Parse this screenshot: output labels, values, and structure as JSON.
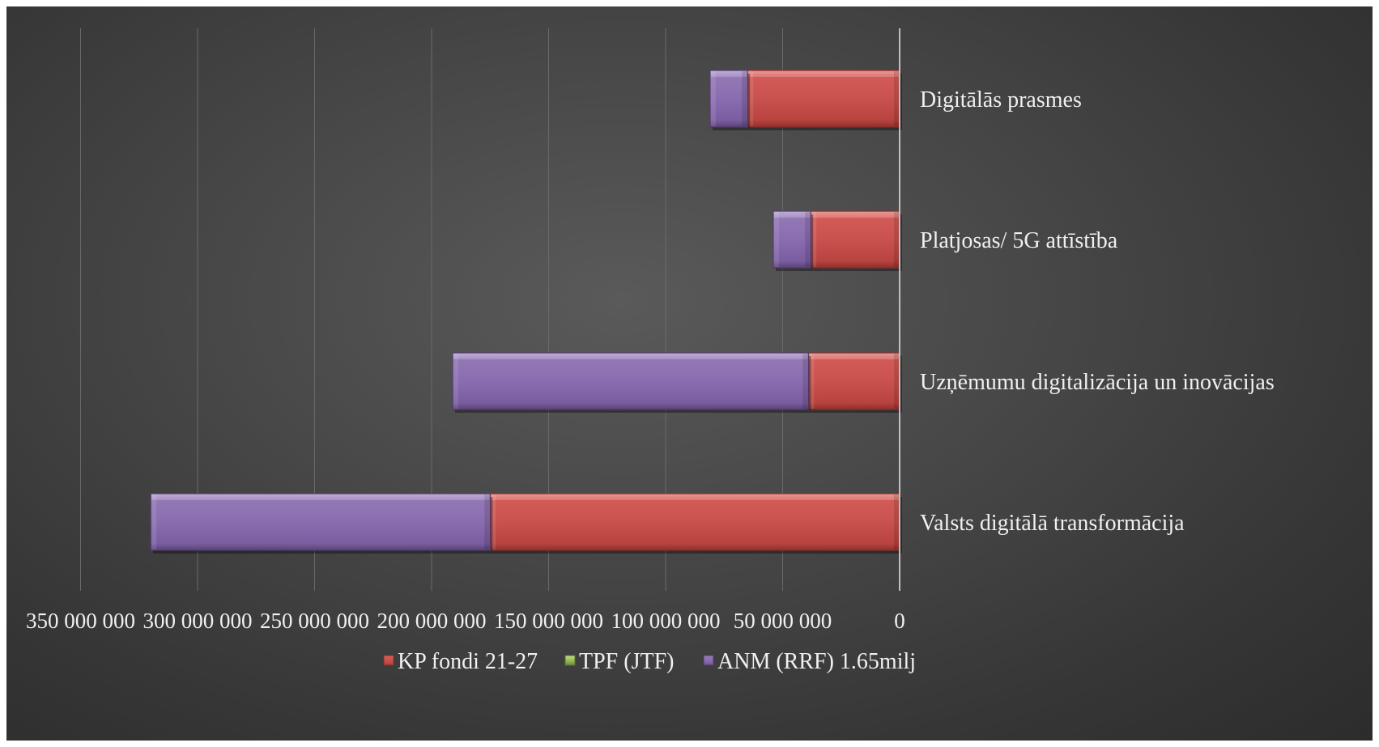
{
  "chart_data": {
    "type": "bar",
    "orientation": "horizontal",
    "x_reversed": true,
    "stacked": true,
    "categories": [
      "Valsts digitālā transformācija",
      "Uzņēmumu digitalizācija un inovācijas",
      "Platjosas/ 5G attīstība",
      "Digitālās prasmes"
    ],
    "series": [
      {
        "name": "KP fondi 21-27",
        "values": [
          175000000,
          39000000,
          38000000,
          65000000
        ],
        "color": "#c0504d"
      },
      {
        "name": "TPF (JTF)",
        "values": [
          0,
          0,
          0,
          0
        ],
        "color": "#9bbb59"
      },
      {
        "name": "ANM (RRF) 1.65milj",
        "values": [
          145000000,
          152000000,
          16000000,
          16000000
        ],
        "color": "#8064a2"
      }
    ],
    "x_ticks": [
      "350 000 000",
      "300 000 000",
      "250 000 000",
      "200 000 000",
      "150 000 000",
      "100 000 000",
      "50 000 000",
      "0"
    ],
    "xlim": [
      0,
      350000000
    ],
    "grid": true,
    "legend": "bottom",
    "title": "",
    "xlabel": "",
    "ylabel": ""
  }
}
